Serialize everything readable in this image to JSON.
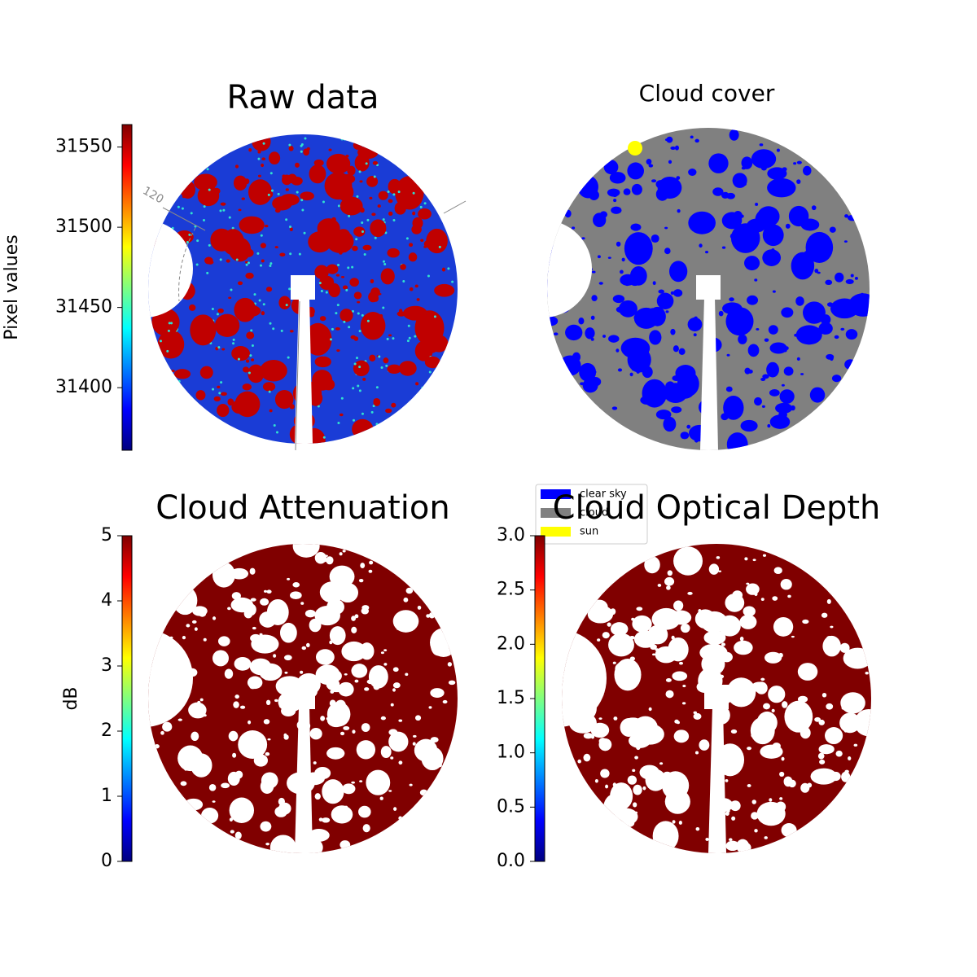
{
  "chart_data": [
    {
      "type": "image",
      "title": "Raw data",
      "colorbar_label": "Pixel values",
      "colormap": "jet",
      "clim": [
        31361,
        31564
      ],
      "cticks": [
        31400,
        31450,
        31500,
        31550
      ],
      "annotations": [
        "120"
      ]
    },
    {
      "type": "image",
      "title": "Cloud cover",
      "legend": [
        {
          "name": "clear sky",
          "color": "#0000ff"
        },
        {
          "name": "cloud",
          "color": "#808080"
        },
        {
          "name": "sun",
          "color": "#ffff00"
        }
      ]
    },
    {
      "type": "image",
      "title": "Cloud Attenuation",
      "colorbar_label": "dB",
      "colormap": "jet",
      "clim": [
        0,
        5
      ],
      "cticks": [
        0,
        1,
        2,
        3,
        4,
        5
      ]
    },
    {
      "type": "image",
      "title": "Cloud Optical Depth",
      "colormap": "jet",
      "clim": [
        0,
        3
      ],
      "cticks": [
        {
          "value": 0,
          "label": "0.0"
        },
        {
          "value": 0.5,
          "label": "0.5"
        },
        {
          "value": 1,
          "label": "1.0"
        },
        {
          "value": 1.5,
          "label": "1.5"
        },
        {
          "value": 2,
          "label": "2.0"
        },
        {
          "value": 2.5,
          "label": "2.5"
        },
        {
          "value": 3,
          "label": "3.0"
        }
      ]
    }
  ]
}
